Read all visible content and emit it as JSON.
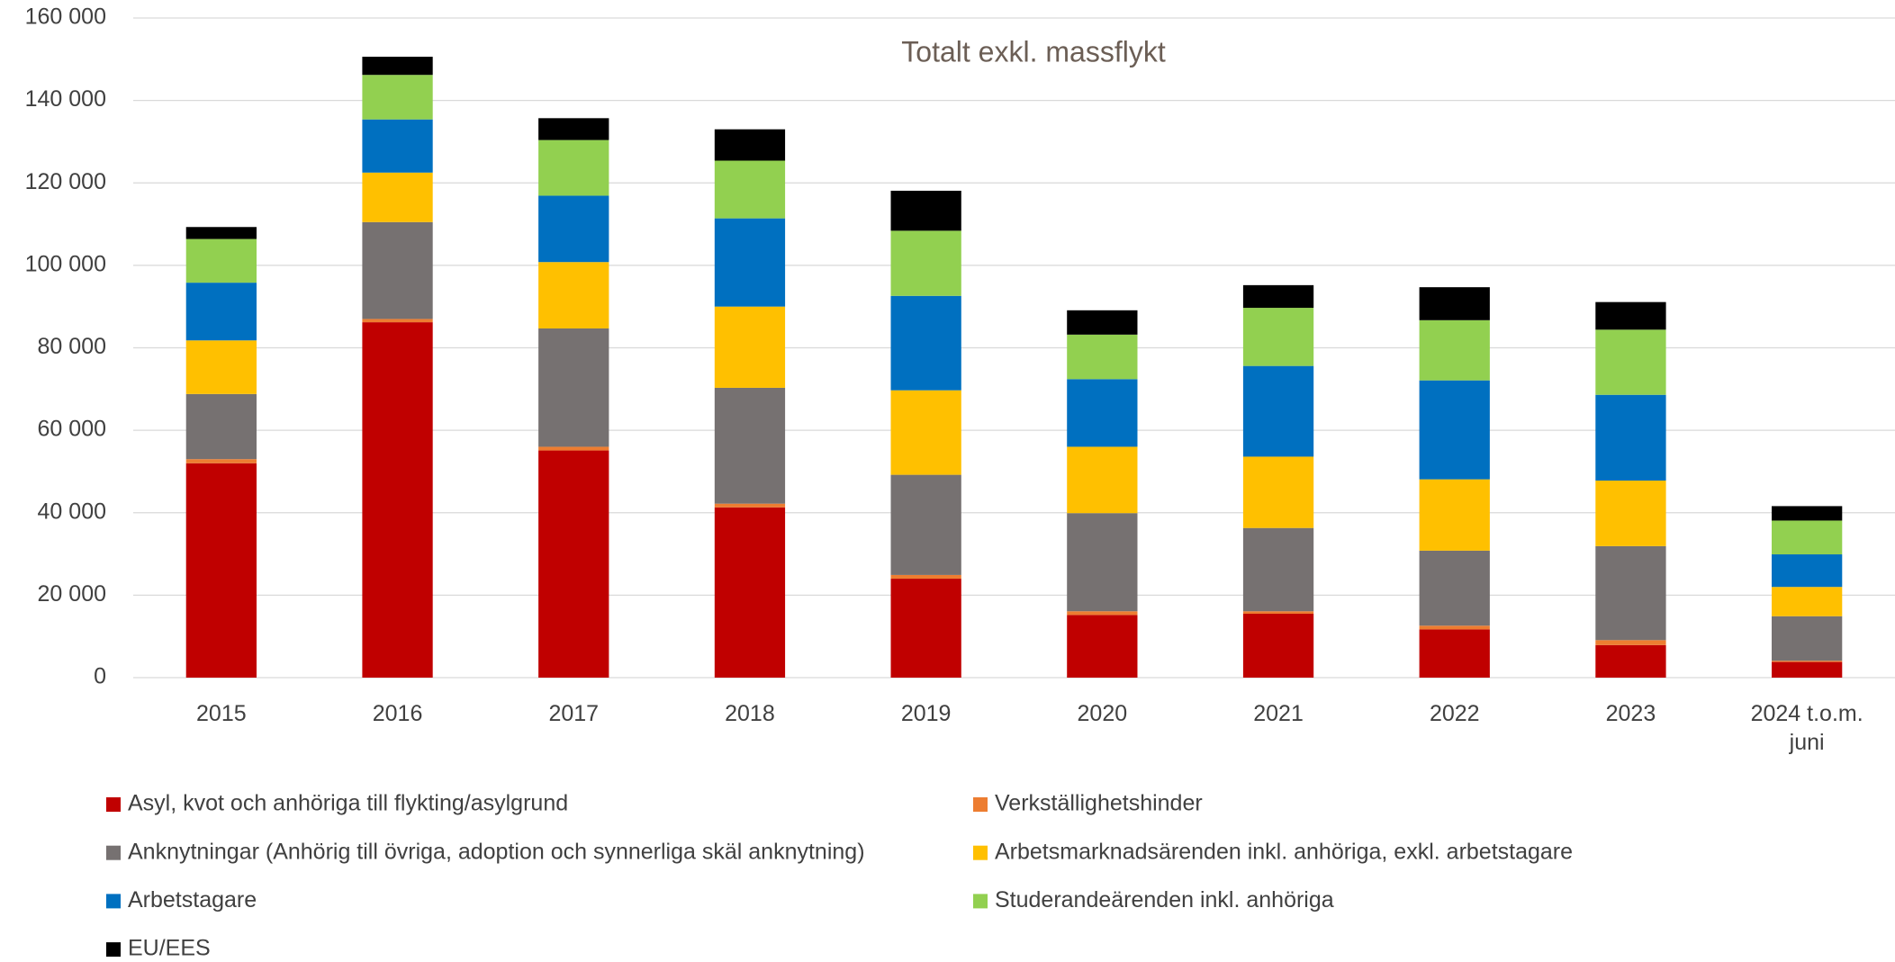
{
  "chart_data": {
    "type": "stacked_bar",
    "title": "Totalt exkl. massflykt",
    "categories": [
      "2015",
      "2016",
      "2017",
      "2018",
      "2019",
      "2020",
      "2021",
      "2022",
      "2023",
      "2024 t.o.m. juni"
    ],
    "series": [
      {
        "name": "Asyl, kvot och anhöriga till flykting/asylgrund",
        "color": "#c00000",
        "values": [
          52000,
          86200,
          55100,
          41300,
          24000,
          15200,
          15500,
          11700,
          7900,
          3800
        ]
      },
      {
        "name": "Verkställighetshinder",
        "color": "#ed7d31",
        "values": [
          1000,
          800,
          900,
          900,
          900,
          900,
          600,
          900,
          1200,
          300
        ]
      },
      {
        "name": "Anknytningar (Anhörig till övriga, adoption och synnerliga skäl anknytning)",
        "color": "#767171",
        "values": [
          15800,
          23500,
          28700,
          28100,
          24300,
          23800,
          20200,
          18200,
          22800,
          10800
        ]
      },
      {
        "name": "Arbetsmarknadsärenden inkl. anhöriga, exkl. arbetstagare",
        "color": "#ffc000",
        "values": [
          13000,
          12000,
          16100,
          19700,
          20500,
          16100,
          17300,
          17300,
          15900,
          7100
        ]
      },
      {
        "name": "Arbetstagare",
        "color": "#0070c0",
        "values": [
          14000,
          12900,
          16100,
          21400,
          22900,
          16400,
          22000,
          24000,
          20800,
          7900
        ]
      },
      {
        "name": "Studerandeärenden inkl. anhöriga",
        "color": "#92d050",
        "values": [
          10600,
          10800,
          13500,
          14000,
          15800,
          10800,
          14100,
          14600,
          15800,
          8200
        ]
      },
      {
        "name": "EU/EES",
        "color": "#000000",
        "values": [
          2900,
          4400,
          5300,
          7600,
          9700,
          5900,
          5500,
          8000,
          6700,
          3500
        ]
      }
    ],
    "ylim": [
      0,
      160000
    ],
    "yticks": [
      0,
      {
        "value": 20000,
        "label": "20 000"
      },
      {
        "value": 40000,
        "label": "40 000"
      },
      {
        "value": 60000,
        "label": "60 000"
      },
      {
        "value": 80000,
        "label": "80 000"
      },
      {
        "value": 100000,
        "label": "100 000"
      },
      {
        "value": 120000,
        "label": "120 000"
      },
      {
        "value": 140000,
        "label": "140 000"
      },
      {
        "value": 160000,
        "label": "160 000"
      }
    ],
    "grid": true,
    "legend": "bottom"
  }
}
